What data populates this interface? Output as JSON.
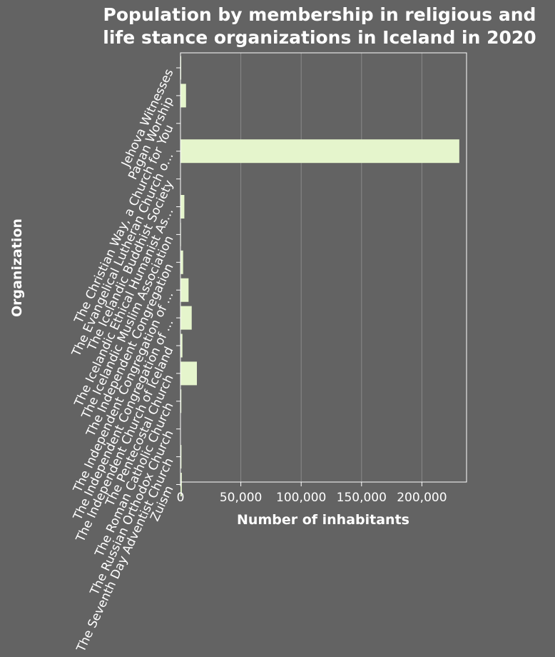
{
  "chart_data": {
    "type": "bar",
    "orientation": "horizontal",
    "title_lines": [
      "Population by membership in religious and",
      "life stance organizations in Iceland in 2020"
    ],
    "xlabel": "Number of inhabitants",
    "ylabel": "Organization",
    "xlim": [
      0,
      237000
    ],
    "x_ticks": [
      0,
      50000,
      100000,
      150000,
      200000
    ],
    "x_tick_labels": [
      "0",
      "50,000",
      "100,000",
      "150,000",
      "200,000"
    ],
    "grid": "vertical",
    "colors": {
      "background": "#636363",
      "bar": "#e5f5cc",
      "grid": "#8a8a8a",
      "text": "#ffffff"
    },
    "categories": [
      "Jehova Witnesses",
      "Pagan Worship",
      "The Christian Way, a Church for You",
      "The Evangelical Lutheran Church o...",
      "The Icelandic Buddhist Society",
      "The Icelandic Ethical Humanist As...",
      "The Icelandic Muslim Association",
      "The Independent Congregation",
      "The Independent Congregation of ...",
      "The Independent Congregation of ...",
      "The Independent Church of Iceland",
      "The Pentecostal Church",
      "The Roman Catholic Church",
      "The Russian Orthodox Church",
      "The Seventh Day Adventist Church",
      "Zuism"
    ],
    "values": [
      600,
      4600,
      150,
      231000,
      100,
      3200,
      400,
      2200,
      6700,
      9300,
      1600,
      13600,
      700,
      200,
      800,
      1100
    ]
  }
}
